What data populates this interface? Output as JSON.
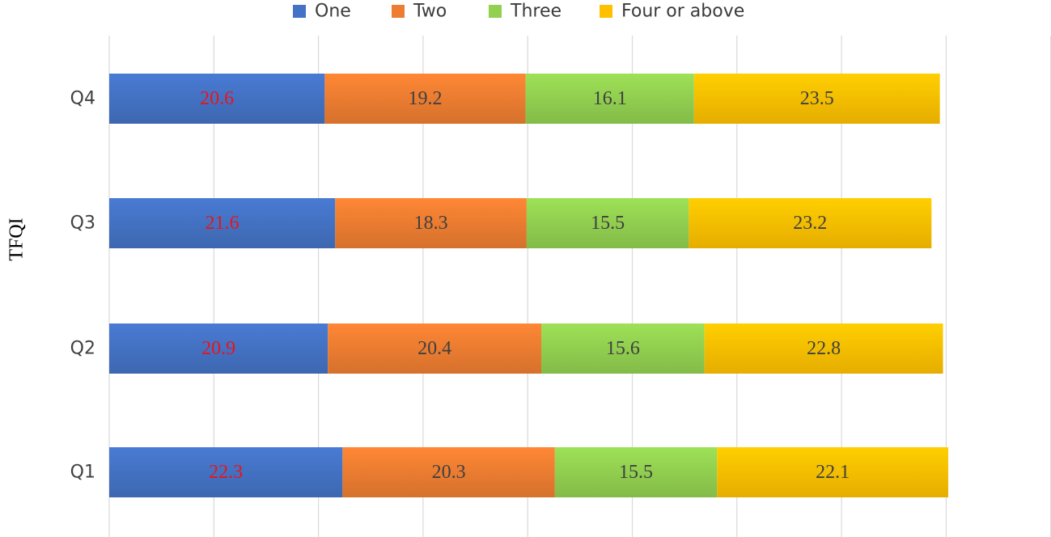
{
  "chart_data": {
    "type": "bar",
    "orientation": "horizontal",
    "stacked": true,
    "ylabel": "TFQI",
    "xlabel": "",
    "categories": [
      "Q1",
      "Q2",
      "Q3",
      "Q4"
    ],
    "series": [
      {
        "name": "One",
        "values": [
          22.3,
          20.9,
          21.6,
          20.6
        ],
        "color": "#4472C4",
        "label_color": "#E8141B"
      },
      {
        "name": "Two",
        "values": [
          20.3,
          20.4,
          18.3,
          19.2
        ],
        "color": "#ED7D31",
        "label_color": "#404040"
      },
      {
        "name": "Three",
        "values": [
          15.5,
          15.6,
          15.5,
          16.1
        ],
        "color": "#92D050",
        "label_color": "#404040"
      },
      {
        "name": "Four or above",
        "values": [
          22.1,
          22.8,
          23.2,
          23.5
        ],
        "color": "#FFC000",
        "label_color": "#404040"
      }
    ],
    "xlim": [
      0,
      90
    ],
    "grid": true,
    "legend_position": "top"
  }
}
